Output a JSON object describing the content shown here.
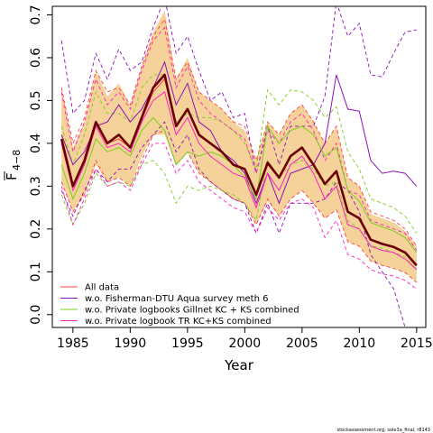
{
  "chart_data": {
    "type": "line",
    "xlabel": "Year",
    "ylabel": "F",
    "ylabel_sub": "4−8",
    "xlim": [
      1983.2,
      2015.8
    ],
    "ylim": [
      -0.03,
      0.72
    ],
    "xticks": [
      1985,
      1990,
      1995,
      2000,
      2005,
      2010,
      2015
    ],
    "yticks": [
      0.0,
      0.1,
      0.2,
      0.3,
      0.4,
      0.5,
      0.6,
      0.7
    ],
    "ytick_labels": [
      "0.0",
      "0.1",
      "0.2",
      "0.3",
      "0.4",
      "0.5",
      "0.6",
      "0.7"
    ],
    "x": [
      1984,
      1985,
      1986,
      1987,
      1988,
      1989,
      1990,
      1991,
      1992,
      1993,
      1994,
      1995,
      1996,
      1997,
      1998,
      1999,
      2000,
      2001,
      2002,
      2003,
      2004,
      2005,
      2006,
      2007,
      2008,
      2009,
      2010,
      2011,
      2012,
      2013,
      2014,
      2015
    ],
    "estimate": [
      0.41,
      0.3,
      0.36,
      0.45,
      0.4,
      0.42,
      0.39,
      0.46,
      0.53,
      0.56,
      0.44,
      0.48,
      0.42,
      0.4,
      0.38,
      0.35,
      0.34,
      0.28,
      0.355,
      0.32,
      0.37,
      0.39,
      0.35,
      0.305,
      0.335,
      0.24,
      0.225,
      0.175,
      0.165,
      0.158,
      0.145,
      0.115
    ],
    "ci_lower": [
      0.31,
      0.24,
      0.28,
      0.35,
      0.31,
      0.32,
      0.3,
      0.37,
      0.42,
      0.42,
      0.35,
      0.38,
      0.33,
      0.31,
      0.29,
      0.27,
      0.26,
      0.21,
      0.265,
      0.23,
      0.27,
      0.29,
      0.26,
      0.225,
      0.245,
      0.17,
      0.16,
      0.125,
      0.115,
      0.108,
      0.098,
      0.075
    ],
    "ci_upper": [
      0.53,
      0.39,
      0.45,
      0.57,
      0.51,
      0.54,
      0.49,
      0.58,
      0.66,
      0.71,
      0.55,
      0.6,
      0.52,
      0.5,
      0.48,
      0.45,
      0.43,
      0.36,
      0.45,
      0.42,
      0.47,
      0.49,
      0.45,
      0.4,
      0.44,
      0.32,
      0.3,
      0.235,
      0.225,
      0.215,
      0.195,
      0.16
    ],
    "series": [
      {
        "name": "All data",
        "color": "#ff4040",
        "lower_color": "#ff4040",
        "values": [
          0.4,
          0.3,
          0.36,
          0.45,
          0.4,
          0.41,
          0.39,
          0.455,
          0.52,
          0.55,
          0.44,
          0.48,
          0.42,
          0.4,
          0.38,
          0.35,
          0.34,
          0.28,
          0.35,
          0.32,
          0.37,
          0.39,
          0.35,
          0.305,
          0.335,
          0.24,
          0.225,
          0.175,
          0.165,
          0.158,
          0.145,
          0.115
        ],
        "upper": [
          0.53,
          0.4,
          0.46,
          0.57,
          0.52,
          0.53,
          0.49,
          0.58,
          0.65,
          0.69,
          0.55,
          0.59,
          0.52,
          0.5,
          0.48,
          0.45,
          0.44,
          0.36,
          0.45,
          0.42,
          0.47,
          0.49,
          0.45,
          0.4,
          0.44,
          0.32,
          0.3,
          0.24,
          0.23,
          0.22,
          0.2,
          0.16
        ],
        "lower": [
          0.31,
          0.24,
          0.28,
          0.36,
          0.31,
          0.32,
          0.3,
          0.36,
          0.42,
          0.43,
          0.35,
          0.38,
          0.33,
          0.31,
          0.29,
          0.27,
          0.26,
          0.21,
          0.27,
          0.23,
          0.27,
          0.29,
          0.26,
          0.225,
          0.245,
          0.17,
          0.16,
          0.125,
          0.115,
          0.108,
          0.098,
          0.075
        ]
      },
      {
        "name": "w.o. Fisherman-DTU Aqua survey meth 6",
        "color": "#8b10b8",
        "values": [
          0.42,
          0.35,
          0.38,
          0.44,
          0.45,
          0.49,
          0.45,
          0.48,
          0.53,
          0.59,
          0.49,
          0.54,
          0.45,
          0.43,
          0.38,
          0.36,
          0.33,
          0.26,
          0.33,
          0.26,
          0.33,
          0.34,
          0.35,
          0.4,
          0.56,
          0.48,
          0.475,
          0.36,
          0.33,
          0.335,
          0.33,
          0.3
        ],
        "upper": [
          0.64,
          0.47,
          0.5,
          0.61,
          0.55,
          0.62,
          0.57,
          0.59,
          0.67,
          0.74,
          0.61,
          0.65,
          0.57,
          0.5,
          0.52,
          0.46,
          0.47,
          0.33,
          0.44,
          0.35,
          0.44,
          0.44,
          0.44,
          0.51,
          0.73,
          0.65,
          0.68,
          0.56,
          0.555,
          0.61,
          0.66,
          0.665
        ],
        "lower": [
          0.29,
          0.23,
          0.29,
          0.34,
          0.31,
          0.34,
          0.34,
          0.39,
          0.42,
          0.45,
          0.38,
          0.42,
          0.34,
          0.31,
          0.29,
          0.27,
          0.26,
          0.19,
          0.26,
          0.19,
          0.26,
          0.26,
          0.26,
          0.27,
          0.31,
          0.29,
          0.24,
          0.14,
          0.1,
          0.06,
          -0.03,
          -0.05
        ]
      },
      {
        "name": "w.o. Private logbooks Gillnet KC + KS combined",
        "color": "#7ccd1a",
        "values": [
          0.35,
          0.27,
          0.33,
          0.41,
          0.38,
          0.39,
          0.37,
          0.43,
          0.46,
          0.43,
          0.35,
          0.38,
          0.37,
          0.38,
          0.37,
          0.35,
          0.32,
          0.27,
          0.44,
          0.4,
          0.43,
          0.44,
          0.42,
          0.37,
          0.39,
          0.29,
          0.265,
          0.215,
          0.205,
          0.195,
          0.18,
          0.145
        ],
        "upper": [
          0.44,
          0.35,
          0.42,
          0.52,
          0.47,
          0.47,
          0.45,
          0.53,
          0.56,
          0.56,
          0.45,
          0.47,
          0.46,
          0.46,
          0.45,
          0.43,
          0.4,
          0.34,
          0.525,
          0.49,
          0.525,
          0.52,
          0.5,
          0.46,
          0.485,
          0.38,
          0.34,
          0.27,
          0.26,
          0.25,
          0.23,
          0.19
        ],
        "lower": [
          0.28,
          0.21,
          0.26,
          0.33,
          0.3,
          0.31,
          0.3,
          0.35,
          0.36,
          0.33,
          0.26,
          0.3,
          0.29,
          0.3,
          0.29,
          0.28,
          0.26,
          0.22,
          0.36,
          0.32,
          0.35,
          0.36,
          0.34,
          0.3,
          0.31,
          0.22,
          0.2,
          0.16,
          0.155,
          0.145,
          0.135,
          0.105
        ]
      },
      {
        "name": "w.o. Private logbook TR KC+KS combined",
        "color": "#ff20c0",
        "values": [
          0.4,
          0.29,
          0.35,
          0.44,
          0.39,
          0.4,
          0.38,
          0.45,
          0.5,
          0.52,
          0.42,
          0.46,
          0.4,
          0.37,
          0.35,
          0.33,
          0.32,
          0.25,
          0.33,
          0.29,
          0.35,
          0.37,
          0.33,
          0.27,
          0.3,
          0.21,
          0.2,
          0.16,
          0.15,
          0.145,
          0.13,
          0.105
        ],
        "upper": [
          0.52,
          0.38,
          0.45,
          0.55,
          0.49,
          0.52,
          0.48,
          0.57,
          0.64,
          0.67,
          0.53,
          0.58,
          0.5,
          0.47,
          0.45,
          0.43,
          0.41,
          0.33,
          0.43,
          0.4,
          0.45,
          0.47,
          0.43,
          0.36,
          0.4,
          0.29,
          0.28,
          0.22,
          0.21,
          0.2,
          0.19,
          0.15
        ],
        "lower": [
          0.3,
          0.21,
          0.27,
          0.34,
          0.3,
          0.31,
          0.29,
          0.35,
          0.4,
          0.4,
          0.33,
          0.36,
          0.31,
          0.29,
          0.27,
          0.25,
          0.24,
          0.19,
          0.25,
          0.22,
          0.26,
          0.27,
          0.25,
          0.18,
          0.22,
          0.14,
          0.13,
          0.105,
          0.095,
          0.09,
          0.08,
          0.06
        ]
      }
    ],
    "colors": {
      "band": "#f5d29a",
      "estimate": "#6b0000"
    },
    "legend_position": "bottom-left",
    "grid": false
  },
  "footer": "stockassessment.org, sole3a_final, r8143"
}
